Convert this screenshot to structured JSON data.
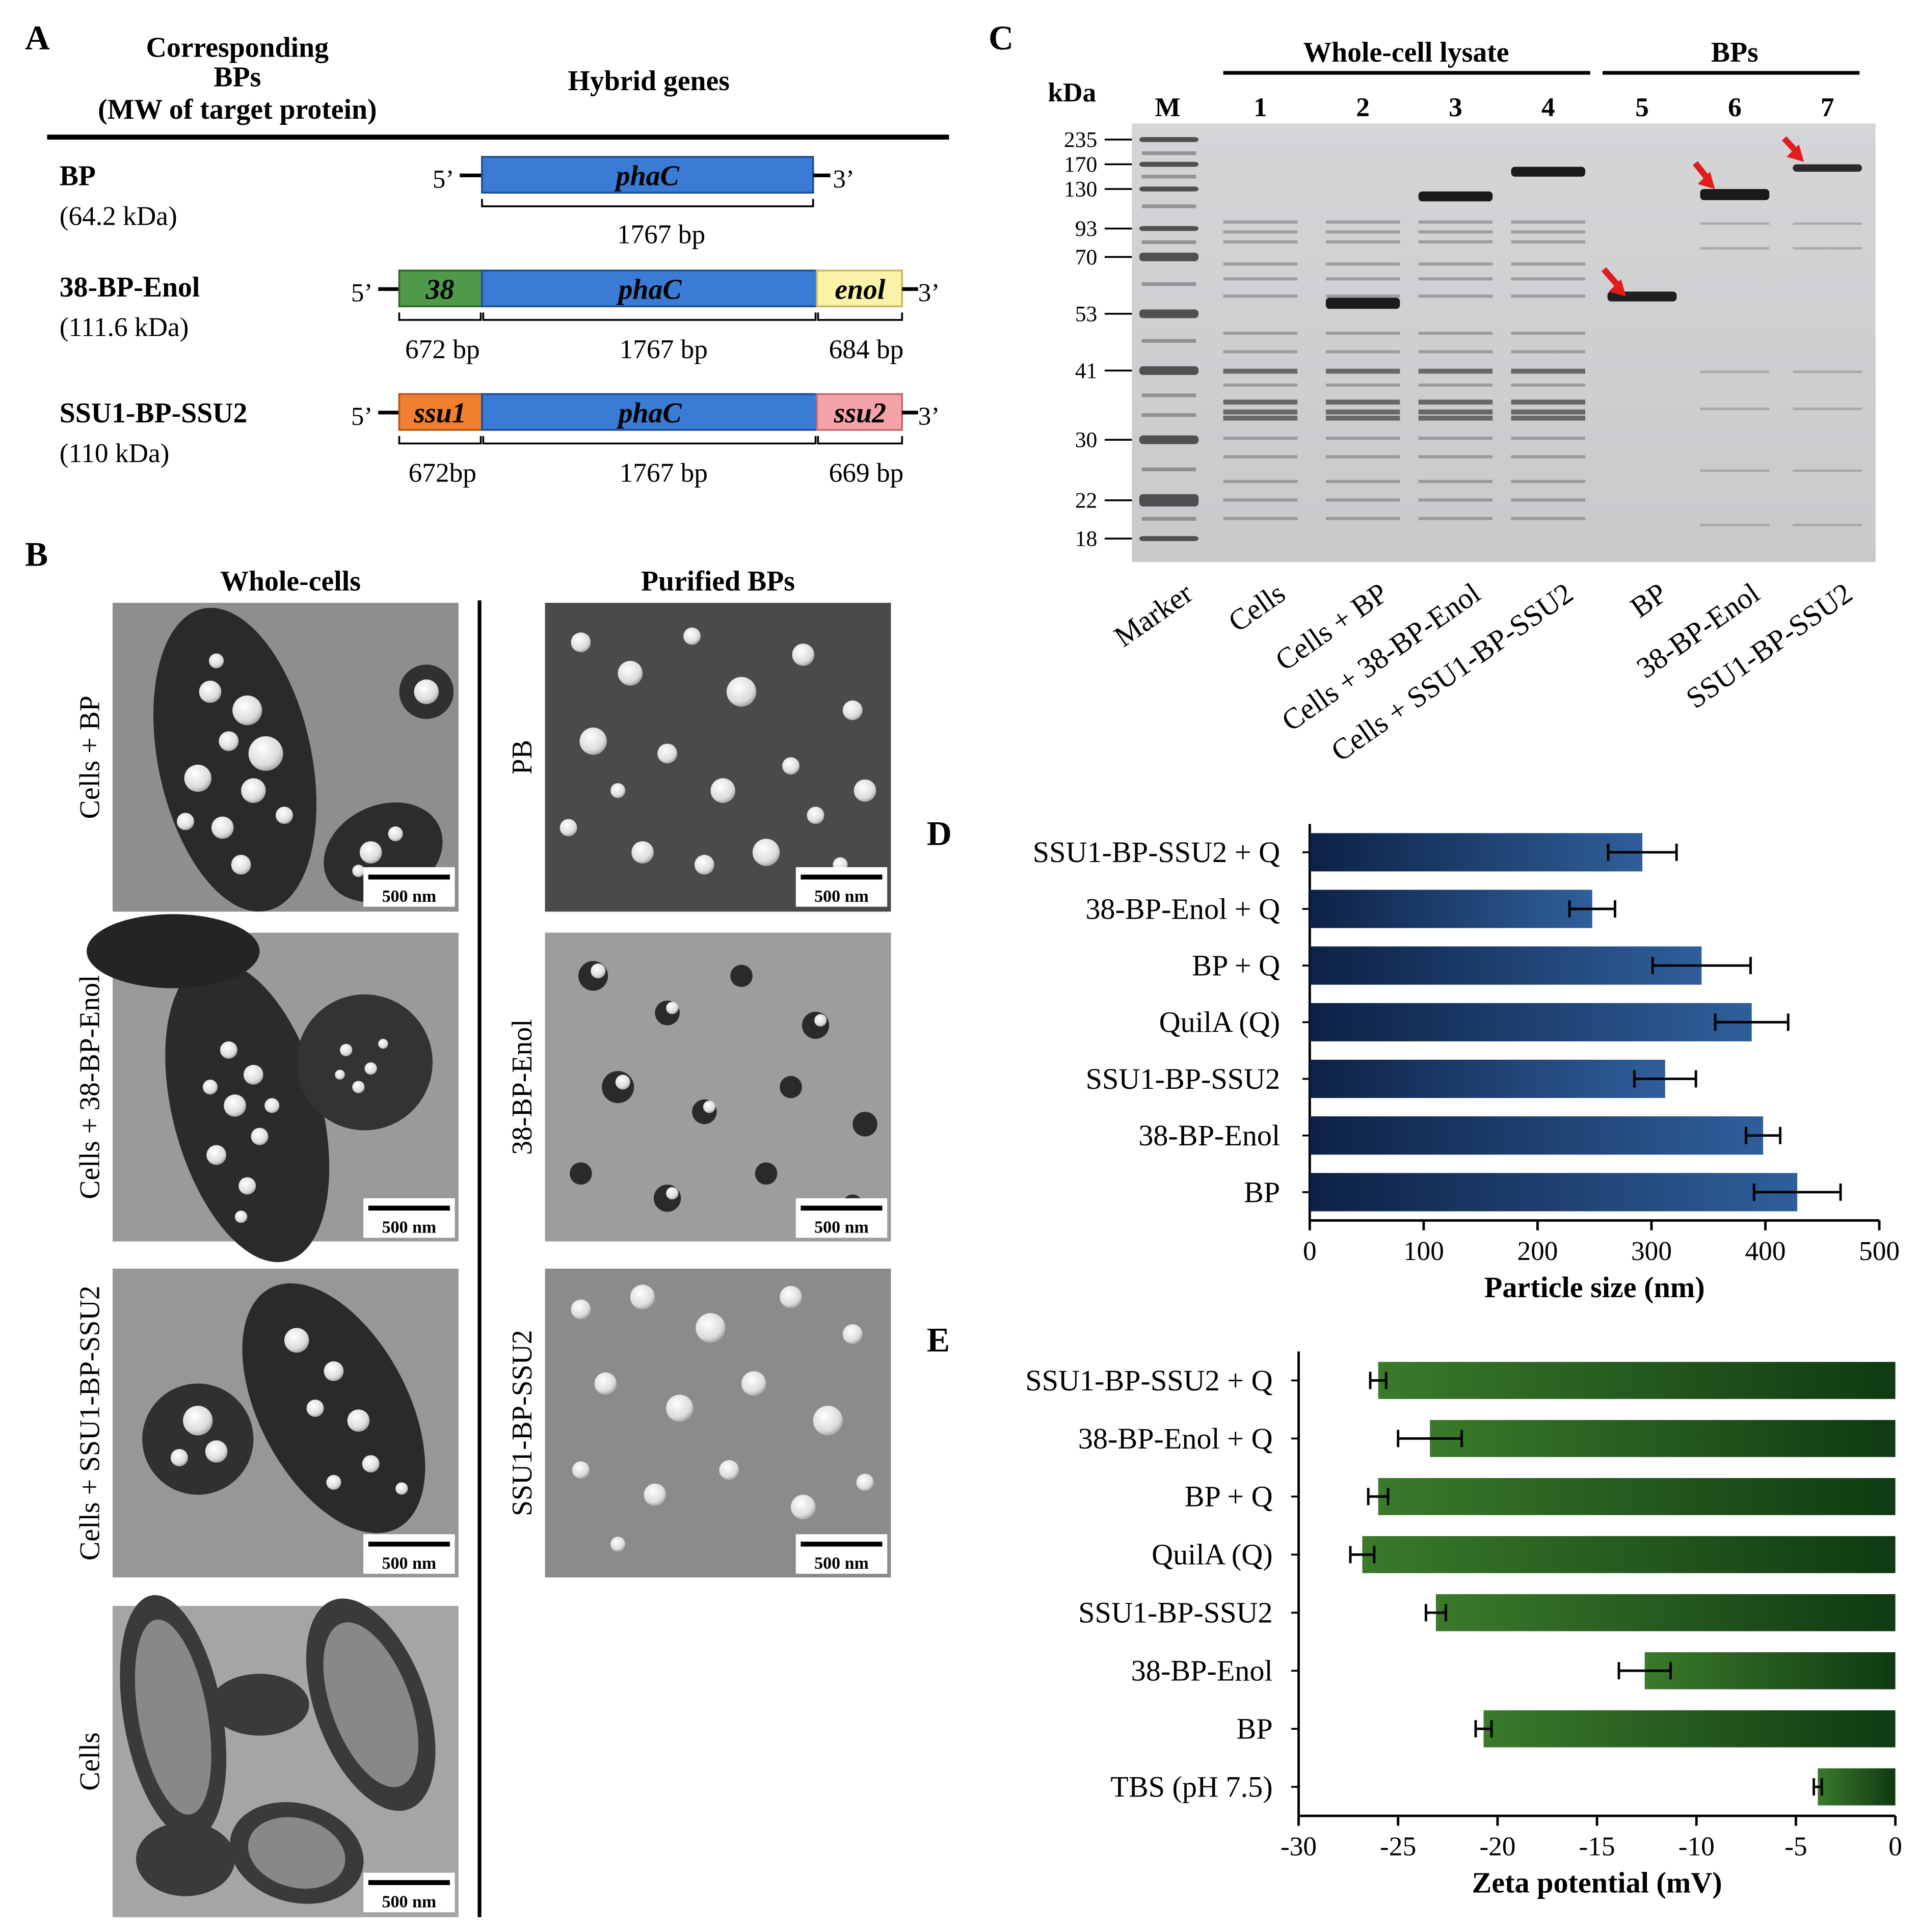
{
  "panelA": {
    "letter": "A",
    "header_col1": [
      "Corresponding",
      "BPs",
      "(MW of target protein)"
    ],
    "header_col2": "Hybrid genes",
    "rows": [
      {
        "name": "BP",
        "mw": "(64.2 kDa)",
        "segments": [
          {
            "label": "phaC",
            "color": "#3a7bd5",
            "bp": "1767 bp"
          }
        ]
      },
      {
        "name": "38-BP-Enol",
        "mw": "(111.6 kDa)",
        "segments": [
          {
            "label": "38",
            "color": "#4e9a4a",
            "bp": "672 bp"
          },
          {
            "label": "phaC",
            "color": "#3a7bd5",
            "bp": "1767 bp"
          },
          {
            "label": "enol",
            "color": "#fbf3a9",
            "bp": "684 bp"
          }
        ]
      },
      {
        "name": "SSU1-BP-SSU2",
        "mw": "(110 kDa)",
        "segments": [
          {
            "label": "ssu1",
            "color": "#f08030",
            "bp": "672bp"
          },
          {
            "label": "phaC",
            "color": "#3a7bd5",
            "bp": "1767 bp"
          },
          {
            "label": "ssu2",
            "color": "#f4a4a8",
            "bp": "669 bp"
          }
        ]
      }
    ],
    "end5": "5’",
    "end3": "3’"
  },
  "panelB": {
    "letter": "B",
    "col1_title": "Whole-cells",
    "col2_title": "Purified BPs",
    "images_left": [
      "Cells + BP",
      "Cells + 38-BP-Enol",
      "Cells + SSU1-BP-SSU2",
      "Cells"
    ],
    "images_right": [
      "PB",
      "38-BP-Enol",
      "SSU1-BP-SSU2"
    ],
    "scale_bar": "500 nm"
  },
  "panelC": {
    "letter": "C",
    "group1": "Whole-cell lysate",
    "group2": "BPs",
    "kda_label": "kDa",
    "marker_label": "M",
    "lane_numbers": [
      "1",
      "2",
      "3",
      "4",
      "5",
      "6",
      "7"
    ],
    "markers": [
      "235",
      "170",
      "130",
      "93",
      "70",
      "53",
      "41",
      "30",
      "22",
      "18"
    ],
    "lane_labels": [
      "Marker",
      "Cells",
      "Cells + BP",
      "Cells + 38-BP-Enol",
      "Cells + SSU1-BP-SSU2",
      "BP",
      "38-BP-Enol",
      "SSU1-BP-SSU2"
    ]
  },
  "panelD": {
    "letter": "D",
    "chart_data": {
      "type": "bar",
      "orientation": "horizontal",
      "categories": [
        "SSU1-BP-SSU2 + Q",
        "38-BP-Enol + Q",
        "BP + Q",
        "QuilA (Q)",
        "SSU1-BP-SSU2",
        "38-BP-Enol",
        "BP"
      ],
      "values": [
        292,
        248,
        344,
        388,
        312,
        398,
        428
      ],
      "errors": [
        30,
        20,
        43,
        32,
        27,
        15,
        38
      ],
      "xlabel": "Particle size (nm)",
      "xlim": [
        0,
        500
      ],
      "xticks": [
        "0",
        "100",
        "200",
        "300",
        "400",
        "500"
      ],
      "color": "#1e3f70"
    }
  },
  "panelE": {
    "letter": "E",
    "chart_data": {
      "type": "bar",
      "orientation": "horizontal",
      "categories": [
        "SSU1-BP-SSU2 + Q",
        "38-BP-Enol + Q",
        "BP + Q",
        "QuilA (Q)",
        "SSU1-BP-SSU2",
        "38-BP-Enol",
        "BP",
        "TBS (pH 7.5)"
      ],
      "values": [
        -26.0,
        -23.4,
        -26.0,
        -26.8,
        -23.1,
        -12.6,
        -20.7,
        -3.9
      ],
      "errors": [
        0.4,
        1.6,
        0.5,
        0.6,
        0.5,
        1.3,
        0.4,
        0.2
      ],
      "xlabel": "Zeta potential (mV)",
      "xlim": [
        -30,
        0
      ],
      "xticks": [
        "-30",
        "-25",
        "-20",
        "-15",
        "-10",
        "-5",
        "0"
      ],
      "color": "#2e6b22"
    }
  }
}
